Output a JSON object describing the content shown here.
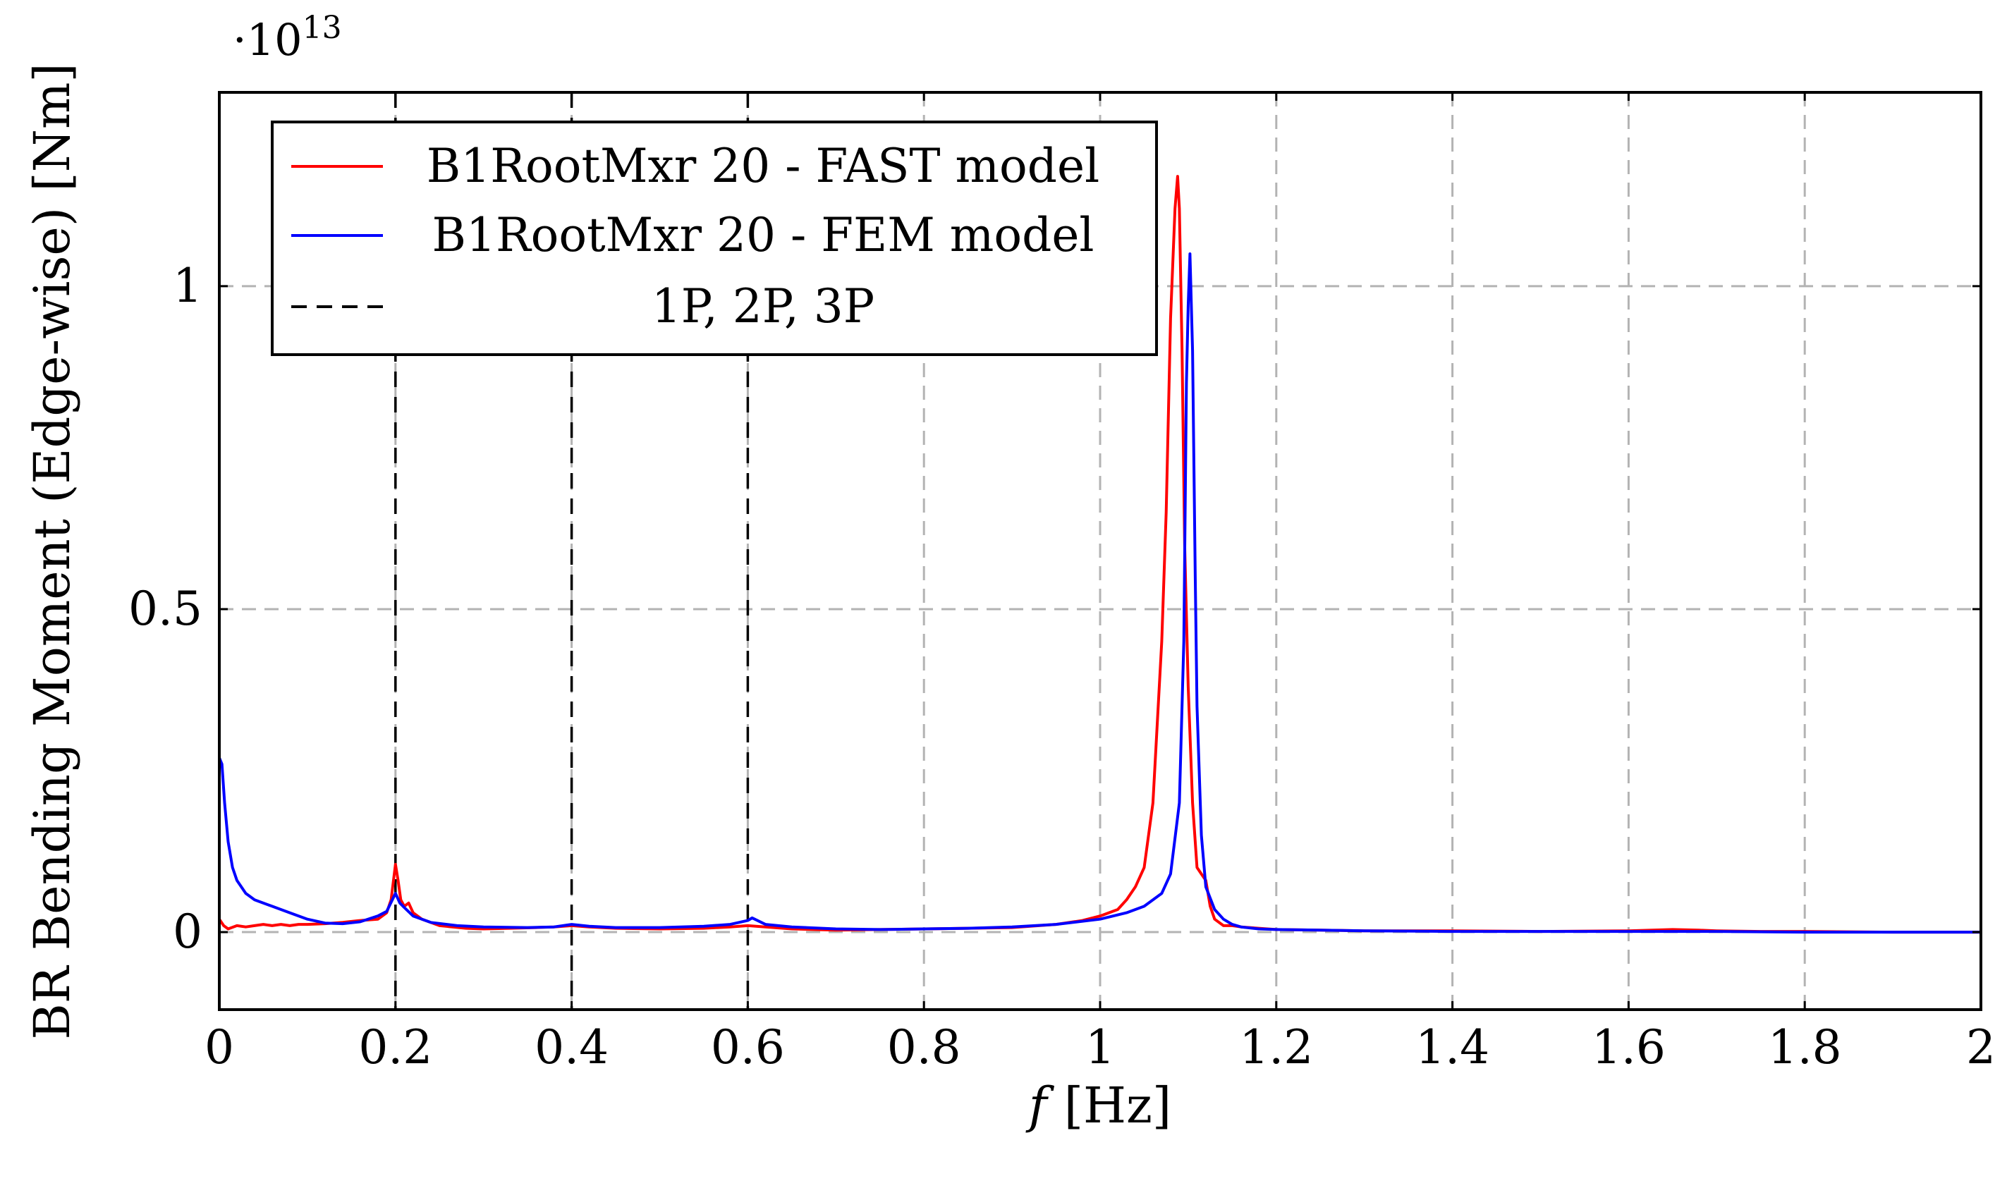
{
  "chart_data": {
    "type": "line",
    "title": "",
    "xlabel_var": "f",
    "xlabel_unit": "[Hz]",
    "ylabel": "BR Bending Moment (Edge-wise) [Nm]",
    "y_scale_prefix": "·10",
    "y_scale_exponent": "13",
    "xlim": [
      0,
      2
    ],
    "ylim": [
      -0.12,
      1.3
    ],
    "xticks": [
      0,
      0.2,
      0.4,
      0.6,
      0.8,
      1,
      1.2,
      1.4,
      1.6,
      1.8,
      2
    ],
    "xtick_labels": [
      "0",
      "0.2",
      "0.4",
      "0.6",
      "0.8",
      "1",
      "1.2",
      "1.4",
      "1.6",
      "1.8",
      "2"
    ],
    "yticks": [
      0,
      0.5,
      1
    ],
    "ytick_labels": [
      "0",
      "0.5",
      "1"
    ],
    "grid": true,
    "legend_position": "top-left",
    "series": [
      {
        "name": "B1RootMxr 20 - FAST model",
        "color": "#ff0000",
        "x": [
          0,
          0.005,
          0.01,
          0.02,
          0.03,
          0.04,
          0.05,
          0.06,
          0.07,
          0.08,
          0.09,
          0.1,
          0.12,
          0.14,
          0.16,
          0.18,
          0.19,
          0.195,
          0.2,
          0.203,
          0.206,
          0.21,
          0.215,
          0.22,
          0.23,
          0.25,
          0.28,
          0.3,
          0.33,
          0.36,
          0.38,
          0.4,
          0.42,
          0.45,
          0.5,
          0.55,
          0.58,
          0.6,
          0.62,
          0.65,
          0.7,
          0.75,
          0.8,
          0.85,
          0.9,
          0.95,
          0.98,
          1.0,
          1.02,
          1.03,
          1.04,
          1.05,
          1.06,
          1.07,
          1.075,
          1.08,
          1.085,
          1.088,
          1.09,
          1.093,
          1.096,
          1.1,
          1.105,
          1.11,
          1.115,
          1.12,
          1.125,
          1.13,
          1.14,
          1.15,
          1.16,
          1.18,
          1.2,
          1.25,
          1.3,
          1.4,
          1.5,
          1.6,
          1.65,
          1.68,
          1.7,
          1.75,
          1.8,
          1.9,
          2.0
        ],
        "y": [
          0.02,
          0.01,
          0.005,
          0.01,
          0.008,
          0.01,
          0.012,
          0.01,
          0.012,
          0.01,
          0.012,
          0.012,
          0.013,
          0.015,
          0.018,
          0.02,
          0.03,
          0.05,
          0.105,
          0.08,
          0.05,
          0.04,
          0.045,
          0.03,
          0.02,
          0.01,
          0.006,
          0.005,
          0.006,
          0.007,
          0.008,
          0.01,
          0.008,
          0.006,
          0.005,
          0.006,
          0.008,
          0.01,
          0.008,
          0.005,
          0.003,
          0.004,
          0.005,
          0.006,
          0.007,
          0.012,
          0.018,
          0.025,
          0.035,
          0.05,
          0.07,
          0.1,
          0.2,
          0.45,
          0.65,
          0.95,
          1.12,
          1.17,
          1.12,
          0.9,
          0.6,
          0.38,
          0.2,
          0.1,
          0.09,
          0.08,
          0.04,
          0.02,
          0.01,
          0.01,
          0.008,
          0.006,
          0.004,
          0.003,
          0.002,
          0.002,
          0.001,
          0.002,
          0.004,
          0.003,
          0.002,
          0.001,
          0.001,
          0.0,
          0.0
        ]
      },
      {
        "name": "B1RootMxr 20 - FEM model",
        "color": "#0000ff",
        "x": [
          0,
          0.003,
          0.006,
          0.01,
          0.015,
          0.02,
          0.03,
          0.04,
          0.06,
          0.08,
          0.1,
          0.12,
          0.14,
          0.16,
          0.18,
          0.19,
          0.2,
          0.205,
          0.21,
          0.22,
          0.24,
          0.27,
          0.3,
          0.35,
          0.38,
          0.4,
          0.42,
          0.45,
          0.5,
          0.55,
          0.58,
          0.6,
          0.605,
          0.62,
          0.65,
          0.7,
          0.75,
          0.8,
          0.85,
          0.9,
          0.95,
          1.0,
          1.03,
          1.05,
          1.07,
          1.08,
          1.09,
          1.095,
          1.098,
          1.1,
          1.102,
          1.105,
          1.108,
          1.11,
          1.115,
          1.12,
          1.13,
          1.14,
          1.15,
          1.16,
          1.18,
          1.2,
          1.25,
          1.3,
          1.4,
          1.5,
          1.6,
          1.7,
          1.8,
          1.9,
          2.0
        ],
        "y": [
          0.27,
          0.26,
          0.2,
          0.14,
          0.1,
          0.08,
          0.06,
          0.05,
          0.04,
          0.03,
          0.02,
          0.014,
          0.013,
          0.016,
          0.025,
          0.032,
          0.06,
          0.045,
          0.038,
          0.025,
          0.015,
          0.01,
          0.008,
          0.007,
          0.008,
          0.012,
          0.009,
          0.007,
          0.007,
          0.009,
          0.012,
          0.018,
          0.022,
          0.012,
          0.008,
          0.005,
          0.004,
          0.005,
          0.006,
          0.008,
          0.012,
          0.02,
          0.03,
          0.04,
          0.06,
          0.09,
          0.2,
          0.45,
          0.85,
          0.97,
          1.05,
          0.9,
          0.55,
          0.35,
          0.15,
          0.07,
          0.035,
          0.02,
          0.012,
          0.008,
          0.005,
          0.004,
          0.003,
          0.002,
          0.001,
          0.001,
          0.001,
          0.001,
          0.0,
          0.0,
          0.0
        ]
      }
    ],
    "vlines": {
      "name": "1P, 2P, 3P",
      "color": "#000000",
      "x": [
        0.2,
        0.4,
        0.6
      ]
    }
  }
}
